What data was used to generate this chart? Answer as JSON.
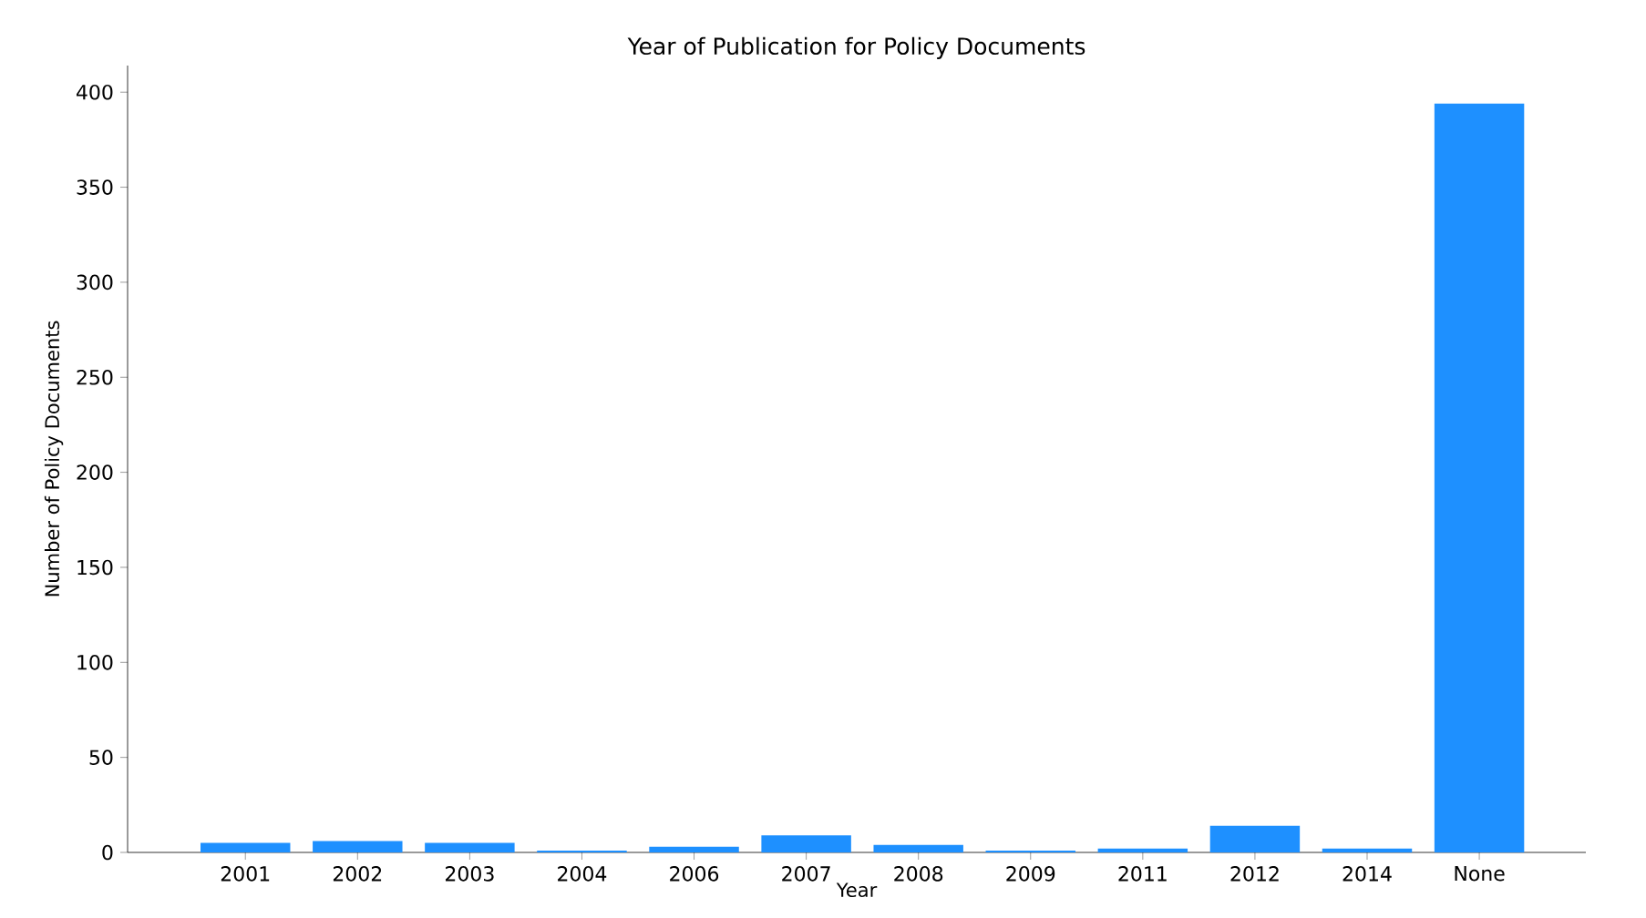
{
  "chart_data": {
    "type": "bar",
    "title": "Year of Publication for Policy Documents",
    "xlabel": "Year",
    "ylabel": "Number of Policy Documents",
    "categories": [
      "2001",
      "2002",
      "2003",
      "2004",
      "2006",
      "2007",
      "2008",
      "2009",
      "2011",
      "2012",
      "2014",
      "None"
    ],
    "values": [
      5,
      6,
      5,
      1,
      3,
      9,
      4,
      1,
      2,
      14,
      2,
      394
    ],
    "color": "#1e90ff",
    "ylim": [
      0,
      414
    ],
    "yticks": [
      0,
      50,
      100,
      150,
      200,
      250,
      300,
      350,
      400
    ],
    "grid": false
  }
}
